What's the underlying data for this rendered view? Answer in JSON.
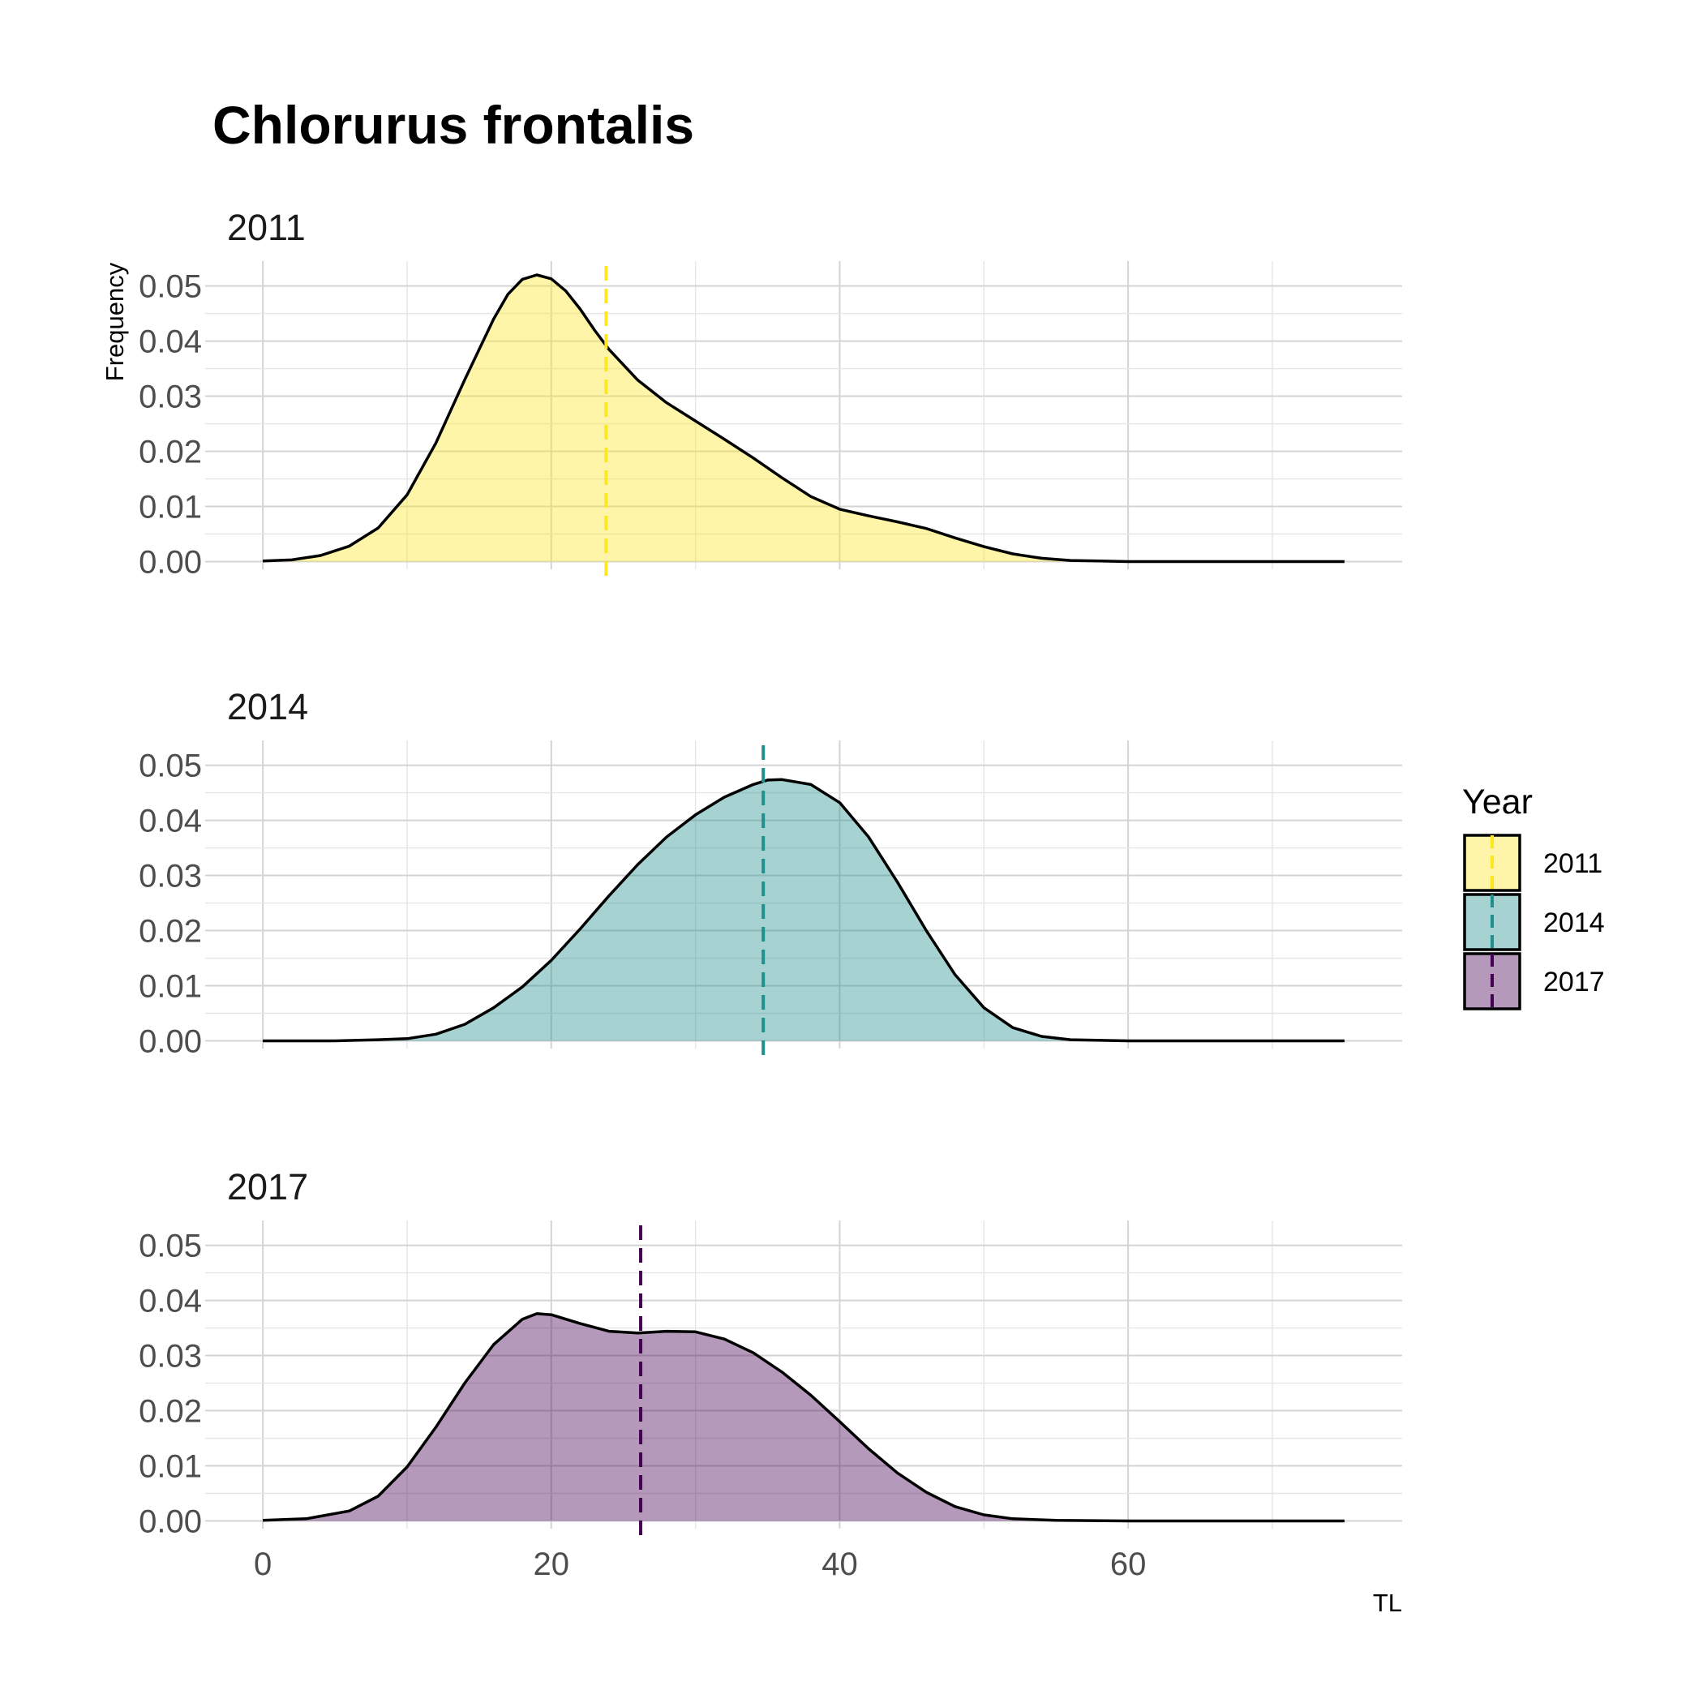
{
  "chart_data": {
    "type": "area",
    "title": "Chlorurus frontalis",
    "xlabel": "TL",
    "ylabel": "Frequency",
    "xlim": [
      -4,
      79
    ],
    "ylim": [
      -0.0014,
      0.0545
    ],
    "x_ticks": [
      0,
      20,
      40,
      60
    ],
    "y_ticks": [
      0.0,
      0.01,
      0.02,
      0.03,
      0.04,
      0.05
    ],
    "grid": true,
    "legend": {
      "title": "Year",
      "position": "right",
      "entries": [
        "2011",
        "2014",
        "2017"
      ]
    },
    "panels": [
      {
        "label": "2011",
        "fill": "#fde725",
        "line": "#fde725",
        "mean_line_x": 23.8,
        "x": [
          0,
          2,
          4,
          6,
          8,
          10,
          12,
          14,
          16,
          17,
          18,
          19,
          20,
          21,
          22,
          23,
          24,
          26,
          28,
          30,
          32,
          34,
          36,
          38,
          40,
          42,
          44,
          46,
          48,
          50,
          52,
          54,
          56,
          58,
          60,
          65,
          70,
          75
        ],
        "y": [
          0.0001,
          0.0003,
          0.0011,
          0.0028,
          0.0061,
          0.0121,
          0.0215,
          0.033,
          0.044,
          0.0485,
          0.0512,
          0.052,
          0.0513,
          0.0491,
          0.0458,
          0.042,
          0.0385,
          0.0329,
          0.0288,
          0.0255,
          0.0222,
          0.0188,
          0.0152,
          0.0118,
          0.0095,
          0.0083,
          0.0072,
          0.006,
          0.0043,
          0.0027,
          0.0014,
          0.0006,
          0.0002,
          0.0001,
          0.0,
          0.0,
          0.0,
          0.0
        ]
      },
      {
        "label": "2014",
        "fill": "#21908c",
        "line": "#21908c",
        "mean_line_x": 34.7,
        "x": [
          0,
          5,
          8,
          10,
          12,
          14,
          16,
          18,
          20,
          22,
          24,
          26,
          28,
          30,
          32,
          34,
          35,
          36,
          38,
          40,
          42,
          44,
          46,
          48,
          50,
          52,
          54,
          56,
          60,
          65,
          70,
          75
        ],
        "y": [
          0.0,
          0.0,
          0.0002,
          0.0004,
          0.0012,
          0.003,
          0.006,
          0.0098,
          0.0146,
          0.0203,
          0.0263,
          0.032,
          0.037,
          0.041,
          0.0442,
          0.0465,
          0.0473,
          0.0474,
          0.0465,
          0.0432,
          0.037,
          0.0288,
          0.02,
          0.012,
          0.006,
          0.0024,
          0.0008,
          0.0002,
          0.0,
          0.0,
          0.0,
          0.0
        ]
      },
      {
        "label": "2017",
        "fill": "#440154",
        "line": "#440154",
        "mean_line_x": 26.2,
        "x": [
          0,
          3,
          6,
          8,
          10,
          12,
          14,
          16,
          18,
          19,
          20,
          22,
          24,
          26,
          28,
          30,
          32,
          34,
          36,
          38,
          40,
          42,
          44,
          46,
          48,
          50,
          52,
          55,
          60,
          65,
          70,
          75
        ],
        "y": [
          0.0001,
          0.0004,
          0.0018,
          0.0045,
          0.0098,
          0.017,
          0.025,
          0.032,
          0.0366,
          0.0376,
          0.0374,
          0.0358,
          0.0344,
          0.0341,
          0.0344,
          0.0343,
          0.033,
          0.0305,
          0.027,
          0.0228,
          0.018,
          0.0131,
          0.0087,
          0.0052,
          0.0026,
          0.0011,
          0.0004,
          0.0001,
          0.0,
          0.0,
          0.0,
          0.0
        ]
      }
    ]
  }
}
